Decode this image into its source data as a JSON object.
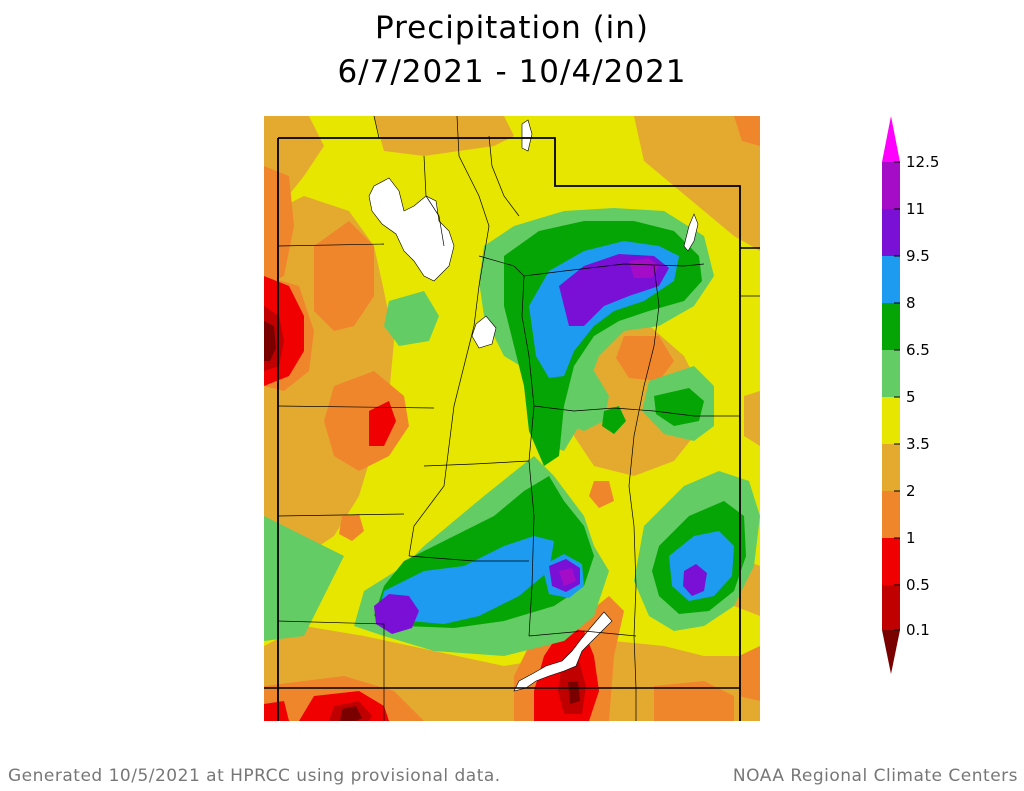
{
  "title": {
    "line1": "Precipitation (in)",
    "line2": "6/7/2021 - 10/4/2021"
  },
  "legend": {
    "ticks": [
      "12.5",
      "11",
      "9.5",
      "8",
      "6.5",
      "5",
      "3.5",
      "2",
      "1",
      "0.5",
      "0.1"
    ],
    "colors": {
      "above_12_5": "#ff00ff",
      "11_12_5": "#a40cc8",
      "9_5_11": "#7a10d6",
      "8_9_5": "#1c9bf0",
      "6_5_8": "#06a506",
      "5_6_5": "#64cc64",
      "3_5_5": "#e6e600",
      "2_3_5": "#e4aa30",
      "1_2": "#f0862c",
      "0_5_1": "#f00000",
      "0_1_0_5": "#c00000",
      "below_0_1": "#7a0000"
    }
  },
  "map": {
    "region": "Utah",
    "water_color": "#ffffff",
    "boundary_color": "#000000"
  },
  "footer": {
    "left": "Generated 10/5/2021 at HPRCC using provisional data.",
    "right": "NOAA Regional Climate Centers"
  }
}
